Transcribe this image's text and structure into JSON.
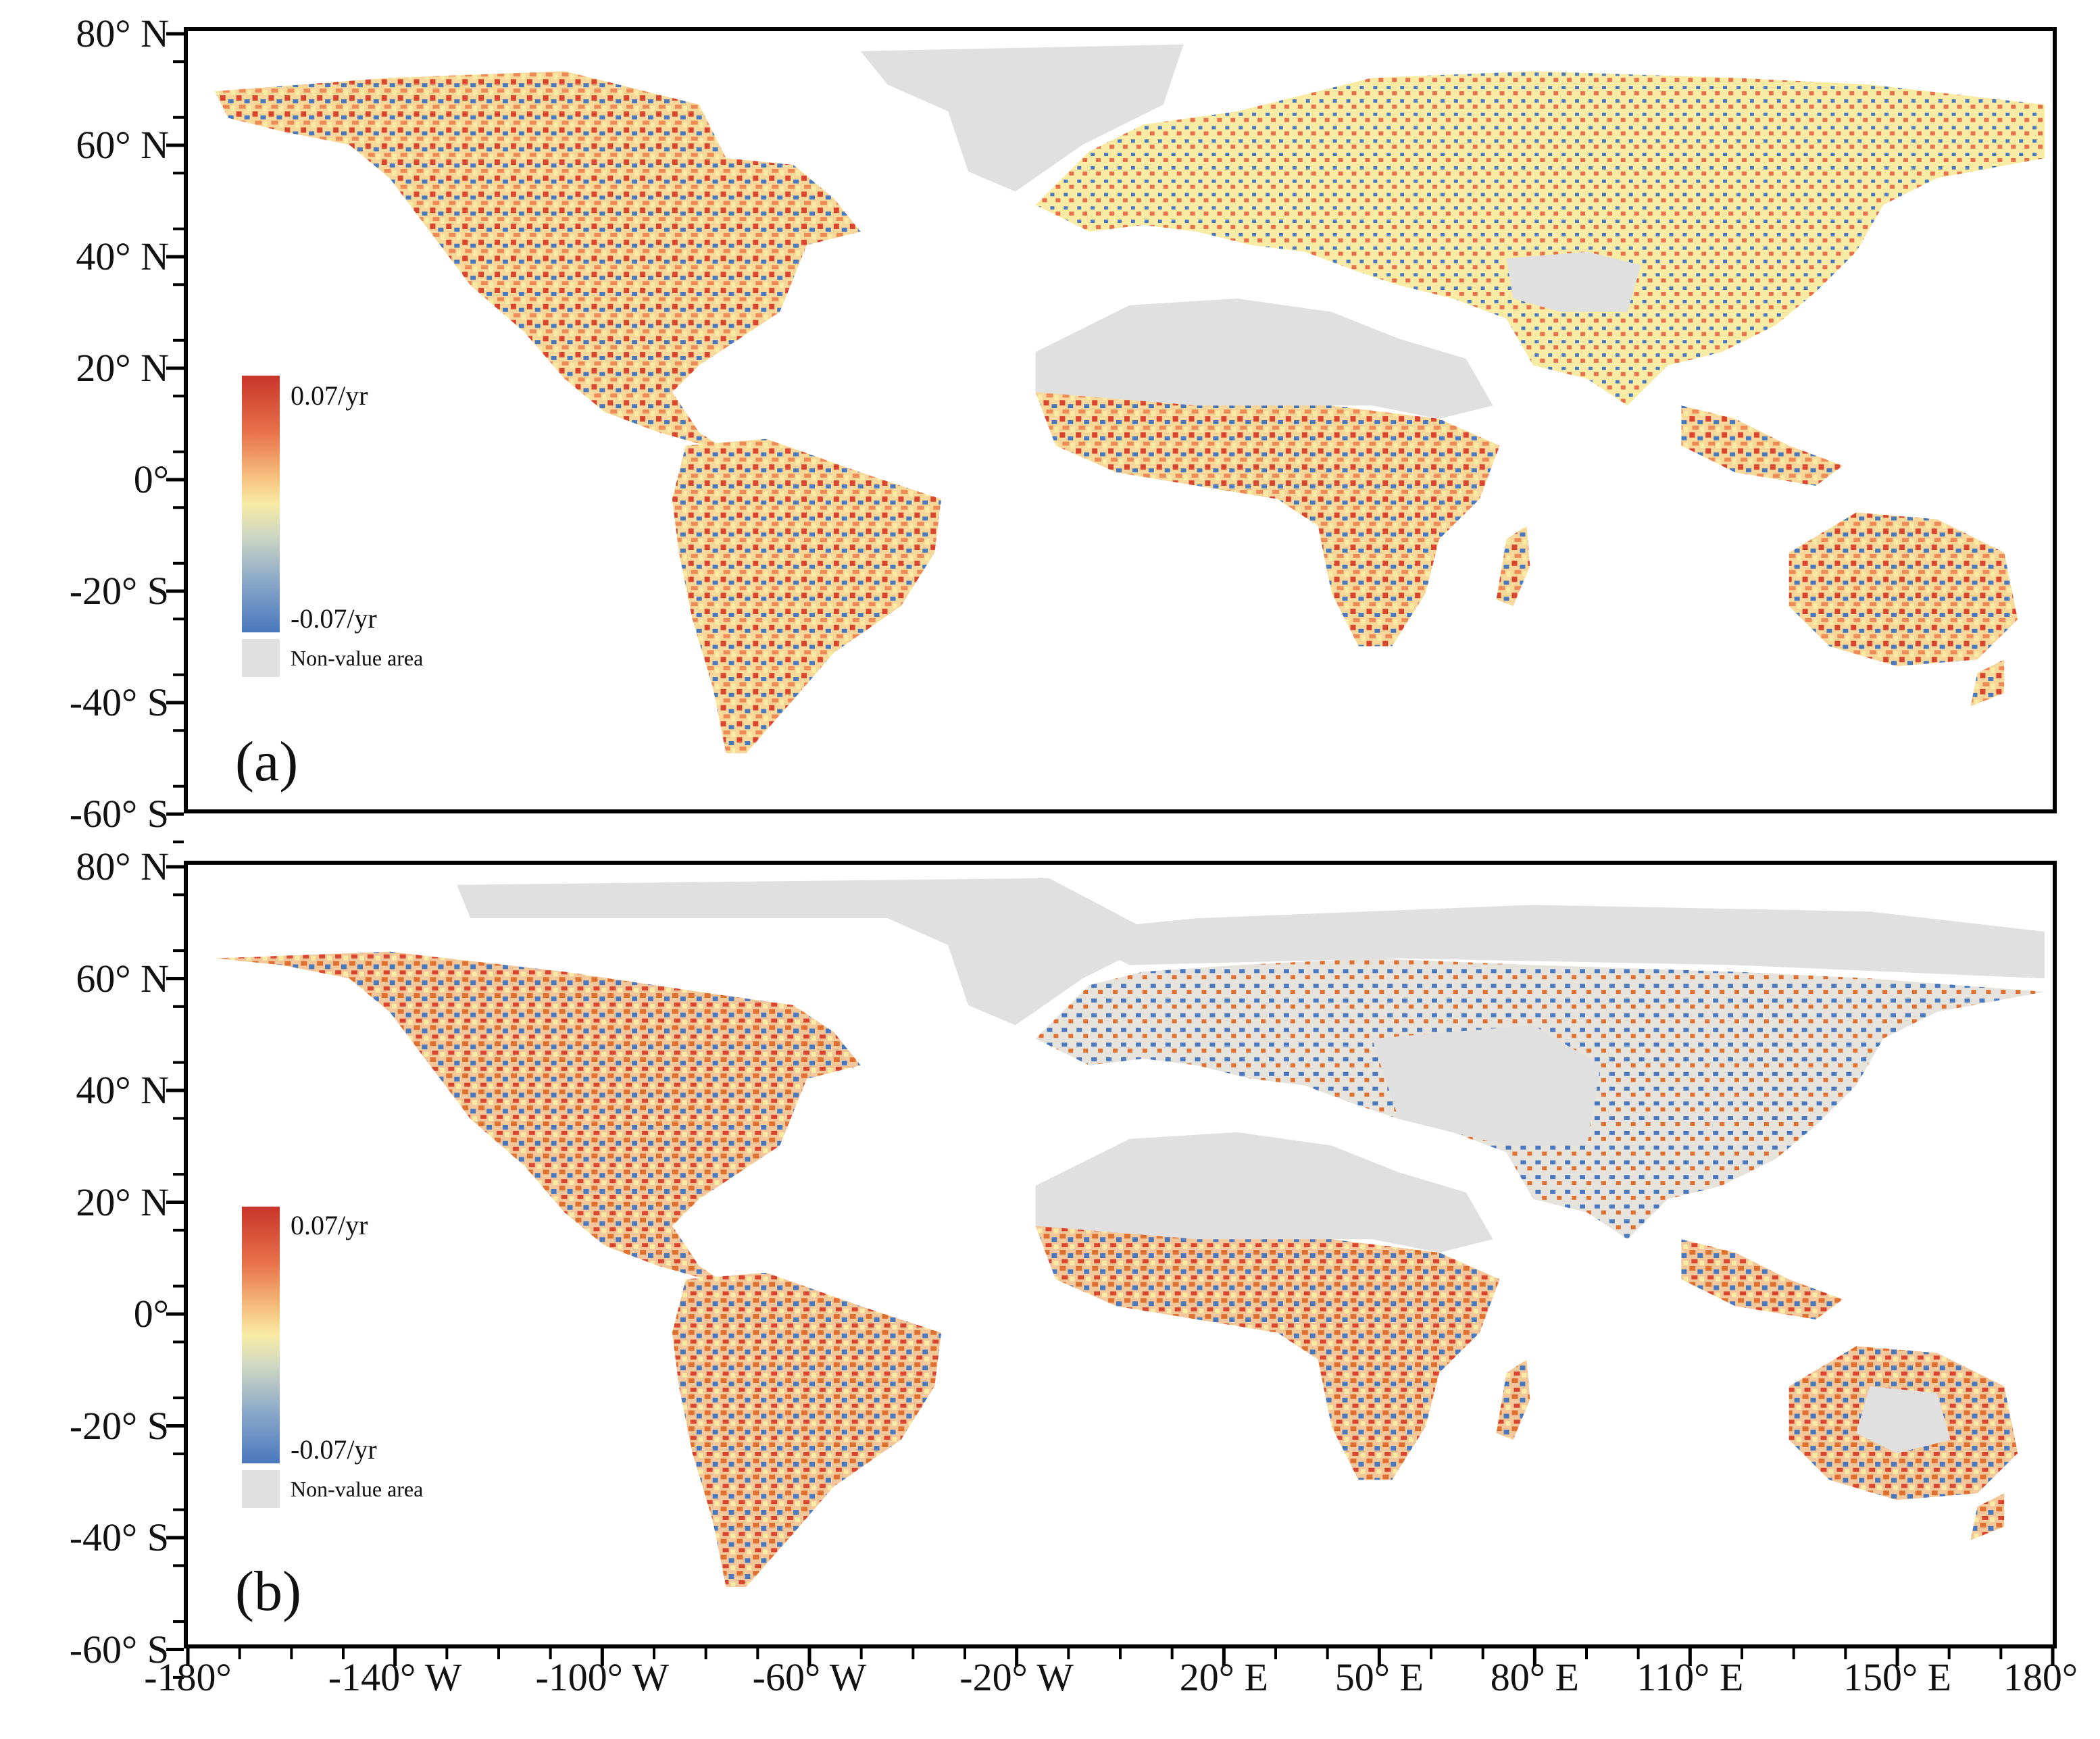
{
  "panels": [
    {
      "id": "a",
      "letter": "(a)",
      "legend": {
        "max_label": "0.07/yr",
        "min_label": "-0.07/yr",
        "nonvalue_label": "Non-value area"
      }
    },
    {
      "id": "b",
      "letter": "(b)",
      "legend": {
        "max_label": "0.07/yr",
        "min_label": "-0.07/yr",
        "nonvalue_label": "Non-value area"
      }
    }
  ],
  "lat_labels": [
    "80° N",
    "60° N",
    "40° N",
    "20° N",
    "0°",
    "-20° S",
    "-40° S",
    "-60° S"
  ],
  "lat_values": [
    80,
    60,
    40,
    20,
    0,
    -20,
    -40,
    -60
  ],
  "lon_labels": [
    "-180°",
    "-140° W",
    "-100° W",
    "-60° W",
    "-20° W",
    "20° E",
    "50° E",
    "80° E",
    "110° E",
    "150° E",
    "180°"
  ],
  "lon_values": [
    -180,
    -140,
    -100,
    -60,
    -20,
    20,
    50,
    80,
    110,
    150,
    180
  ],
  "colors": {
    "high": "#c8352a",
    "mid": "#f8eba4",
    "low": "#4a78be",
    "nonvalue": "#e0e0e0",
    "frame": "#000000"
  },
  "color_scale": {
    "min": -0.07,
    "max": 0.07,
    "unit": "/yr"
  }
}
